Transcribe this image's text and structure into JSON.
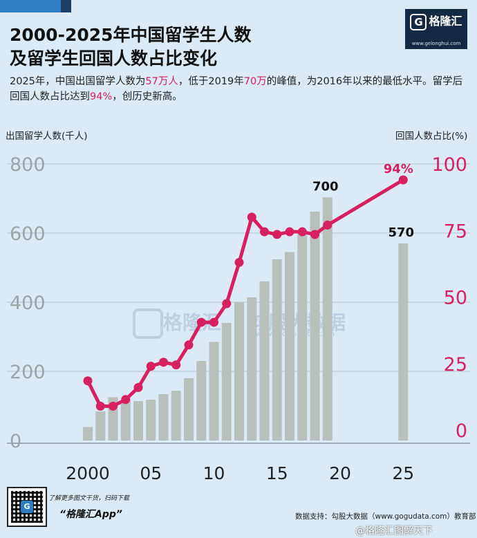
{
  "header": {
    "title_line1": "2000-2025年中国留学生人数",
    "title_line2": "及留学生回国人数占比变化",
    "subtitle_parts": [
      "2025年，中国出国留学人数为",
      "57万人",
      "，低于2019年",
      "70万",
      "的峰值，为2016年以来的最低水平。留学后回国人数占比达到",
      "94%",
      "，创历史新高。"
    ]
  },
  "brand": {
    "name": "格隆汇",
    "url": "www.gelonghui.com",
    "mark": "G"
  },
  "watermark": {
    "brand": "格隆汇",
    "text": "勾股大数据",
    "url": "www.gogudata.com"
  },
  "footer": {
    "promo": "了解更多图文干货，扫码下载",
    "app_name": "“格隆汇App”",
    "source": "数据支持：勾股大数据（www.gogudata.com）教育部",
    "weibo": "@格隆汇图解天下"
  },
  "colors": {
    "bar": "#b9bfbb",
    "line": "#d6205f",
    "left_tick": "#9ca6a6",
    "right_tick": "#d6205f",
    "background": "#dbeaf4"
  },
  "chart_data": {
    "type": "bar",
    "ylabel_left": "出国留学人数(千人)",
    "ylabel_right": "回国人数占比(%)",
    "yticks_left": [
      "800",
      "600",
      "400",
      "200",
      "0"
    ],
    "yticks_right": [
      "100",
      "75",
      "50",
      "25",
      "0"
    ],
    "xticks": [
      "2000",
      "05",
      "10",
      "15",
      "20",
      "25"
    ],
    "ylim_left": [
      0,
      800
    ],
    "ylim_right": [
      0,
      100
    ],
    "grid": true,
    "series": [
      {
        "name": "出国留学人数",
        "kind": "bar",
        "x": [
          2000,
          2001,
          2002,
          2003,
          2004,
          2005,
          2006,
          2007,
          2008,
          2009,
          2010,
          2011,
          2012,
          2013,
          2014,
          2015,
          2016,
          2017,
          2018,
          2019,
          2025
        ],
        "values": [
          39,
          84,
          125,
          117,
          114,
          118,
          134,
          144,
          180,
          230,
          285,
          340,
          400,
          414,
          460,
          524,
          545,
          608,
          662,
          703,
          570
        ]
      },
      {
        "name": "回国人数占比",
        "kind": "line",
        "x": [
          2000,
          2001,
          2002,
          2003,
          2004,
          2005,
          2006,
          2007,
          2008,
          2009,
          2010,
          2011,
          2012,
          2013,
          2014,
          2015,
          2016,
          2017,
          2018,
          2019,
          2025
        ],
        "values": [
          18.5,
          9,
          9,
          11.5,
          16,
          24,
          25.5,
          24.5,
          32,
          40.5,
          40.5,
          47.5,
          63,
          80,
          74.5,
          73.5,
          74.5,
          74.5,
          73.5,
          77,
          94
        ]
      }
    ],
    "data_labels": [
      {
        "series": 0,
        "x": 2019,
        "text": "700"
      },
      {
        "series": 0,
        "x": 2025,
        "text": "570"
      },
      {
        "series": 1,
        "x": 2025,
        "text": "94%"
      }
    ]
  }
}
